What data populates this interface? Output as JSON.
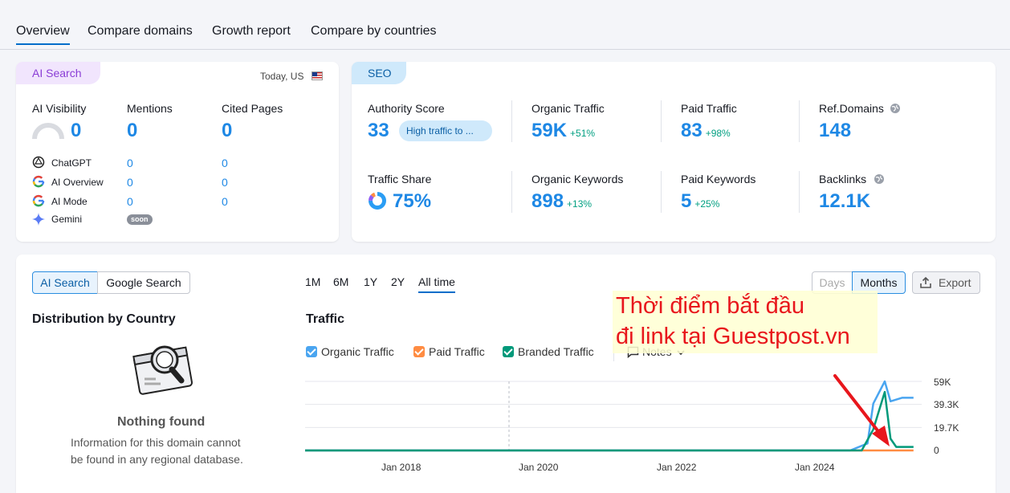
{
  "tabs": [
    "Overview",
    "Compare domains",
    "Growth report",
    "Compare by countries"
  ],
  "ai_card": {
    "header": "AI Search",
    "date": "Today, US",
    "cols": [
      {
        "label": "AI Visibility",
        "value": "0"
      },
      {
        "label": "Mentions",
        "value": "0"
      },
      {
        "label": "Cited Pages",
        "value": "0"
      }
    ],
    "rows": [
      {
        "icon": "chatgpt-icon",
        "name": "ChatGPT",
        "mentions": "0",
        "cited": "0"
      },
      {
        "icon": "google-icon",
        "name": "AI Overview",
        "mentions": "0",
        "cited": "0"
      },
      {
        "icon": "google-icon",
        "name": "AI Mode",
        "mentions": "0",
        "cited": "0"
      },
      {
        "icon": "gemini-icon",
        "name": "Gemini",
        "badge": "soon"
      }
    ]
  },
  "seo_card": {
    "header": "SEO",
    "authority_label": "Authority Score",
    "authority_value": "33",
    "authority_badge": "High traffic to ...",
    "organic_traffic_label": "Organic Traffic",
    "organic_traffic_value": "59K",
    "organic_traffic_delta": "+51%",
    "paid_traffic_label": "Paid Traffic",
    "paid_traffic_value": "83",
    "paid_traffic_delta": "+98%",
    "ref_domains_label": "Ref.Domains",
    "ref_domains_value": "148",
    "traffic_share_label": "Traffic Share",
    "traffic_share_value": "75%",
    "organic_keywords_label": "Organic Keywords",
    "organic_keywords_value": "898",
    "organic_keywords_delta": "+13%",
    "paid_keywords_label": "Paid Keywords",
    "paid_keywords_value": "5",
    "paid_keywords_delta": "+25%",
    "backlinks_label": "Backlinks",
    "backlinks_value": "12.1K"
  },
  "bottom": {
    "toggle": [
      "AI Search",
      "Google Search"
    ],
    "distribution_title": "Distribution by Country",
    "nothing_found": "Nothing found",
    "nothing_desc_1": "Information for this domain cannot",
    "nothing_desc_2": "be found in any regional database.",
    "periods": [
      "1M",
      "6M",
      "1Y",
      "2Y",
      "All time"
    ],
    "active_period": "All time",
    "traffic_title": "Traffic",
    "granularity": [
      "Days",
      "Months"
    ],
    "export_label": "Export",
    "notes_label": "Notes",
    "annotation_line1": "Thời điểm bắt đầu",
    "annotation_line2": "đi link tại Guestpost.vn"
  },
  "colors": {
    "organic": "#4aa5f0",
    "paid": "#ff8c42",
    "branded": "#00997a",
    "accent": "#006dca"
  },
  "chart_data": {
    "type": "line",
    "series": [
      {
        "name": "Organic Traffic",
        "color": "#4aa5f0"
      },
      {
        "name": "Paid Traffic",
        "color": "#ff8c42"
      },
      {
        "name": "Branded Traffic",
        "color": "#00997a"
      }
    ],
    "y_ticks": [
      "59K",
      "39.3K",
      "19.7K",
      "0"
    ],
    "x_ticks": [
      "Jan 2018",
      "Jan 2020",
      "Jan 2022",
      "Jan 2024"
    ],
    "ylim": [
      0,
      59000
    ],
    "organic_points": [
      [
        "2016-07",
        0
      ],
      [
        "2024-07",
        0
      ],
      [
        "2024-10",
        6000
      ],
      [
        "2024-11",
        40000
      ],
      [
        "2025-01",
        59000
      ],
      [
        "2025-02",
        42000
      ],
      [
        "2025-04",
        45000
      ],
      [
        "2025-06",
        45000
      ]
    ],
    "branded_points": [
      [
        "2016-07",
        0
      ],
      [
        "2024-09",
        0
      ],
      [
        "2024-11",
        18000
      ],
      [
        "2025-01",
        50000
      ],
      [
        "2025-02",
        10000
      ],
      [
        "2025-03",
        3000
      ],
      [
        "2025-06",
        3000
      ]
    ],
    "paid_points": [
      [
        "2016-07",
        0
      ],
      [
        "2025-06",
        0
      ]
    ]
  }
}
